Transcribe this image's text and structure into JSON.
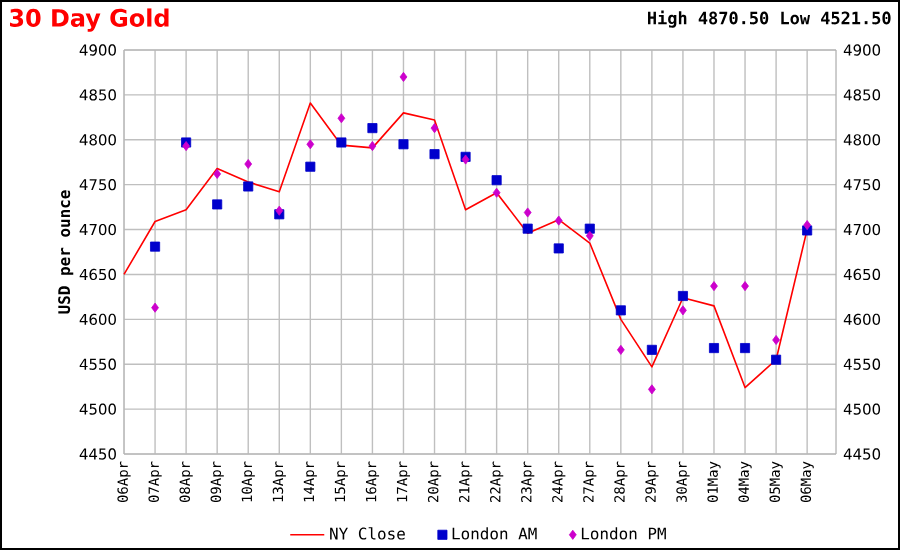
{
  "chart_data": {
    "type": "line",
    "title": "30 Day Gold",
    "subtitle": "High 4870.50 Low 4521.50",
    "ylabel": "USD per ounce",
    "categories": [
      "06Apr",
      "07Apr",
      "08Apr",
      "09Apr",
      "10Apr",
      "13Apr",
      "14Apr",
      "15Apr",
      "16Apr",
      "17Apr",
      "20Apr",
      "21Apr",
      "22Apr",
      "23Apr",
      "24Apr",
      "27Apr",
      "28Apr",
      "29Apr",
      "30Apr",
      "01May",
      "04May",
      "05May",
      "06May"
    ],
    "series": [
      {
        "name": "NY Close",
        "color": "#ff0000",
        "marker": "none",
        "values": [
          4650,
          4709,
          4722,
          4768,
          4753,
          4742,
          4841,
          4794,
          4791,
          4830,
          4822,
          4722,
          4741,
          4696,
          4711,
          4685,
          4600,
          4547,
          4624,
          4615,
          4524,
          4555,
          4700
        ]
      },
      {
        "name": "London AM",
        "type": "scatter",
        "color": "#0000cc",
        "marker": "square",
        "values": [
          null,
          4681,
          4797,
          4728,
          4748,
          4717,
          4770,
          4797,
          4813,
          4795,
          4784,
          4781,
          4755,
          4701,
          4679,
          4701,
          4610,
          4566,
          4626,
          4568,
          4568,
          4555,
          4699
        ]
      },
      {
        "name": "London PM",
        "type": "scatter",
        "color": "#cc00cc",
        "marker": "diamond",
        "values": [
          null,
          4613,
          4793,
          4762,
          4773,
          4721,
          4795,
          4824,
          4793,
          4870,
          4813,
          4778,
          4741,
          4719,
          4710,
          4693,
          4566,
          4522,
          4610,
          4637,
          4637,
          4577,
          4705
        ]
      }
    ],
    "ylim": [
      4450,
      4900
    ],
    "yticks": [
      4450,
      4500,
      4550,
      4600,
      4650,
      4700,
      4750,
      4800,
      4850,
      4900
    ],
    "y2lim": [
      4450,
      4900
    ],
    "y2ticks": [
      4450,
      4500,
      4550,
      4600,
      4650,
      4700,
      4750,
      4800,
      4850,
      4900
    ],
    "grid": true,
    "legend": "bottom"
  }
}
